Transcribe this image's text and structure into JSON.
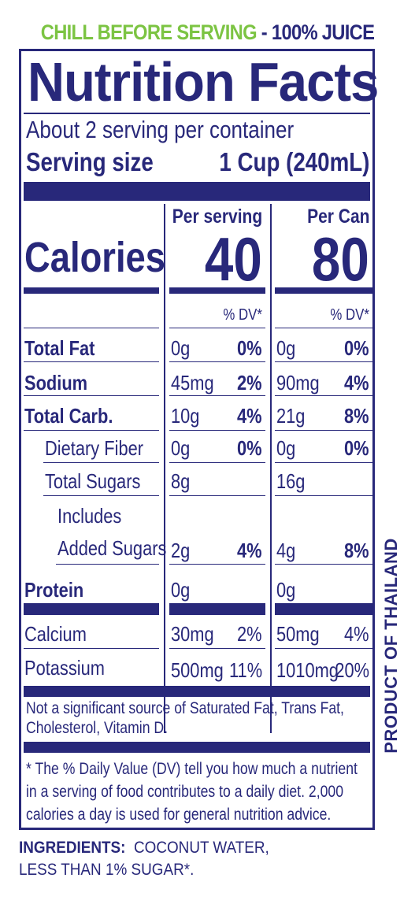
{
  "header": {
    "chill_text": "CHILL BEFORE SERVING",
    "separator": "-",
    "juice_text": "100% JUICE"
  },
  "panel": {
    "title": "Nutrition Facts",
    "servings_per_container": "About 2 serving per container",
    "serving_size_label": "Serving size",
    "serving_size_value": "1 Cup (240mL)",
    "col_serving_label": "Per serving",
    "col_can_label": "Per Can",
    "calories_label": "Calories",
    "calories_serving": "40",
    "calories_can": "80",
    "dv_header": "% DV*",
    "rows": [
      {
        "name": "Total Fat",
        "bold": true,
        "indent": 0,
        "serving_amount": "0g",
        "serving_dv": "0%",
        "can_amount": "0g",
        "can_dv": "0%"
      },
      {
        "name": "Sodium",
        "bold": true,
        "indent": 0,
        "serving_amount": "45mg",
        "serving_dv": "2%",
        "can_amount": "90mg",
        "can_dv": "4%"
      },
      {
        "name": "Total Carb.",
        "bold": true,
        "indent": 0,
        "serving_amount": "10g",
        "serving_dv": "4%",
        "can_amount": "21g",
        "can_dv": "8%"
      },
      {
        "name": "Dietary Fiber",
        "bold": false,
        "indent": 1,
        "serving_amount": "0g",
        "serving_dv": "0%",
        "can_amount": "0g",
        "can_dv": "0%"
      },
      {
        "name": "Total Sugars",
        "bold": false,
        "indent": 1,
        "serving_amount": "8g",
        "serving_dv": "",
        "can_amount": "16g",
        "can_dv": ""
      },
      {
        "name_line1": "Includes",
        "name": "Added Sugars",
        "bold": false,
        "indent": 2,
        "serving_amount": "2g",
        "serving_dv": "4%",
        "can_amount": "4g",
        "can_dv": "8%"
      },
      {
        "name": "Protein",
        "bold": true,
        "indent": 0,
        "serving_amount": "0g",
        "serving_dv": "",
        "can_amount": "0g",
        "can_dv": ""
      },
      {
        "name": "Calcium",
        "bold": false,
        "indent": 0,
        "serving_amount": "30mg",
        "serving_dv": "2%",
        "can_amount": "50mg",
        "can_dv": "4%"
      },
      {
        "name": "Potassium",
        "bold": false,
        "indent": 0,
        "serving_amount": "500mg",
        "serving_dv": "11%",
        "can_amount": "1010mg",
        "can_dv": "20%"
      }
    ],
    "not_significant_line1": "Not a significant source of Saturated Fat, Trans Fat,",
    "not_significant_line2": "Cholesterol, Vitamin D.",
    "footnote_line1": "* The % Daily Value (DV) tell you how much a nutrient",
    "footnote_line2": "in a serving of food contributes to a daily diet. 2,000",
    "footnote_line3": "calories a day is used for general nutrition advice."
  },
  "ingredients": {
    "label": "INGREDIENTS:",
    "line1": "COCONUT WATER,",
    "line2": "LESS THAN 1% SUGAR*."
  },
  "side_text": "PRODUCT OF THAILAND",
  "colors": {
    "navy": "#28287a",
    "green": "#7cc443"
  }
}
